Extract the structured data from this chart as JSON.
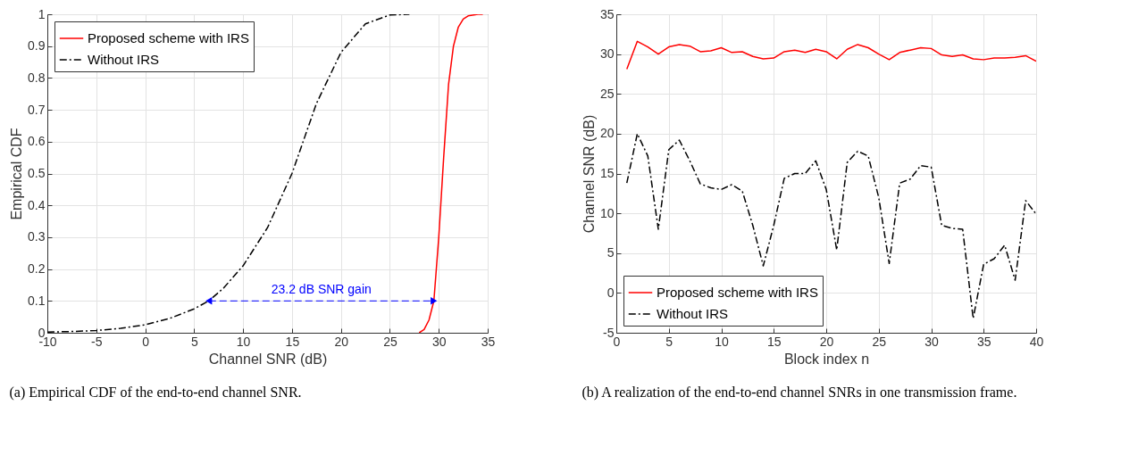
{
  "chart_data": [
    {
      "type": "line",
      "title": "(a) Empirical CDF of the end-to-end channel SNR.",
      "xlabel": "Channel SNR (dB)",
      "ylabel": "Empirical CDF",
      "xlim": [
        -10,
        35
      ],
      "xticks": [
        -10,
        -5,
        0,
        5,
        10,
        15,
        20,
        25,
        30,
        35
      ],
      "ylim": [
        0,
        1
      ],
      "yticks": [
        0,
        0.1,
        0.2,
        0.3,
        0.4,
        0.5,
        0.6,
        0.7,
        0.8,
        0.9,
        1
      ],
      "grid": true,
      "legend": "top left",
      "ref_lines": [
        {
          "axis": "y",
          "value": 0.1,
          "label": "23.2 dB SNR gain",
          "color": "#0000ff",
          "line_style": "dashed"
        }
      ],
      "series": [
        {
          "name": "Proposed scheme with IRS",
          "color": "#ff0000",
          "line_style": "solid",
          "x": [
            28,
            28.5,
            29,
            29.5,
            30,
            30.5,
            31,
            31.5,
            32,
            32.5,
            33,
            34,
            34.5
          ],
          "values": [
            0,
            0.01,
            0.04,
            0.1,
            0.3,
            0.55,
            0.78,
            0.9,
            0.96,
            0.985,
            0.995,
            1,
            1
          ]
        },
        {
          "name": "Without IRS",
          "color": "#000000",
          "line_style": "dashdot",
          "x": [
            -10,
            -7.5,
            -5,
            -2.5,
            0,
            2.5,
            5,
            6.5,
            8,
            10,
            12.5,
            15,
            17.5,
            20,
            22.5,
            25,
            27
          ],
          "values": [
            0.002,
            0.004,
            0.007,
            0.014,
            0.025,
            0.045,
            0.075,
            0.1,
            0.14,
            0.21,
            0.33,
            0.5,
            0.72,
            0.88,
            0.97,
            0.998,
            1
          ]
        }
      ]
    },
    {
      "type": "line",
      "title": "(b) A realization of the end-to-end channel SNRs in one transmission frame.",
      "xlabel": "Block index n",
      "ylabel": "Channel SNR (dB)",
      "xlim": [
        0,
        40
      ],
      "xticks": [
        0,
        5,
        10,
        15,
        20,
        25,
        30,
        35,
        40
      ],
      "ylim": [
        -5,
        35
      ],
      "yticks": [
        -5,
        0,
        5,
        10,
        15,
        20,
        25,
        30,
        35
      ],
      "grid": true,
      "legend": "bottom left",
      "x": [
        1,
        2,
        3,
        4,
        5,
        6,
        7,
        8,
        9,
        10,
        11,
        12,
        13,
        14,
        15,
        16,
        17,
        18,
        19,
        20,
        21,
        22,
        23,
        24,
        25,
        26,
        27,
        28,
        29,
        30,
        31,
        32,
        33,
        34,
        35,
        36,
        37,
        38,
        39,
        40
      ],
      "series": [
        {
          "name": "Proposed scheme with IRS",
          "color": "#ff0000",
          "line_style": "solid",
          "values": [
            28.1,
            31.6,
            30.9,
            30,
            30.9,
            31.2,
            31,
            30.3,
            30.4,
            30.8,
            30.2,
            30.3,
            29.7,
            29.4,
            29.5,
            30.3,
            30.5,
            30.2,
            30.6,
            30.3,
            29.4,
            30.6,
            31.2,
            30.8,
            30,
            29.3,
            30.2,
            30.5,
            30.8,
            30.7,
            29.9,
            29.7,
            29.9,
            29.4,
            29.3,
            29.5,
            29.5,
            29.6,
            29.8,
            29.1
          ]
        },
        {
          "name": "Without IRS",
          "color": "#000000",
          "line_style": "dashdot",
          "values": [
            13.8,
            20,
            17.2,
            8,
            18,
            19.2,
            16.6,
            13.7,
            13.2,
            13,
            13.6,
            12.8,
            8.5,
            3.4,
            8.5,
            14.4,
            15,
            15,
            16.6,
            13,
            5.4,
            16.4,
            17.8,
            17.2,
            12,
            3.7,
            13.8,
            14.3,
            16,
            15.8,
            8.5,
            8.1,
            8,
            -3.2,
            3.6,
            4.3,
            6,
            1.6,
            11.6,
            9.9
          ]
        }
      ]
    }
  ]
}
